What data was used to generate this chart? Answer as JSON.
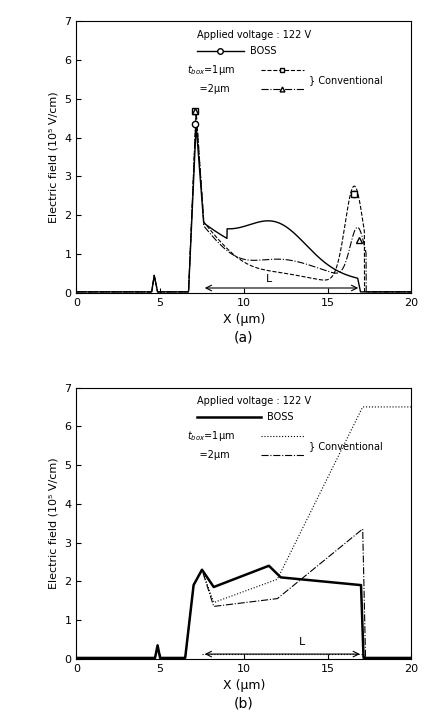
{
  "fig_width": 4.24,
  "fig_height": 7.16,
  "dpi": 100,
  "subplot_a": {
    "xlabel": "X (μm)",
    "ylabel": "Electric field (10⁵ V/cm)",
    "xlim": [
      0,
      20
    ],
    "ylim": [
      0,
      7
    ],
    "yticks": [
      0,
      1,
      2,
      3,
      4,
      5,
      6,
      7
    ],
    "xticks": [
      0,
      5,
      10,
      15,
      20
    ],
    "label": "(a)"
  },
  "subplot_b": {
    "xlabel": "X (μm)",
    "ylabel": "Electric field (10⁵ V/cm)",
    "xlim": [
      0,
      20
    ],
    "ylim": [
      0,
      7
    ],
    "yticks": [
      0,
      1,
      2,
      3,
      4,
      5,
      6,
      7
    ],
    "xticks": [
      0,
      5,
      10,
      15,
      20
    ],
    "label": "(b)"
  }
}
